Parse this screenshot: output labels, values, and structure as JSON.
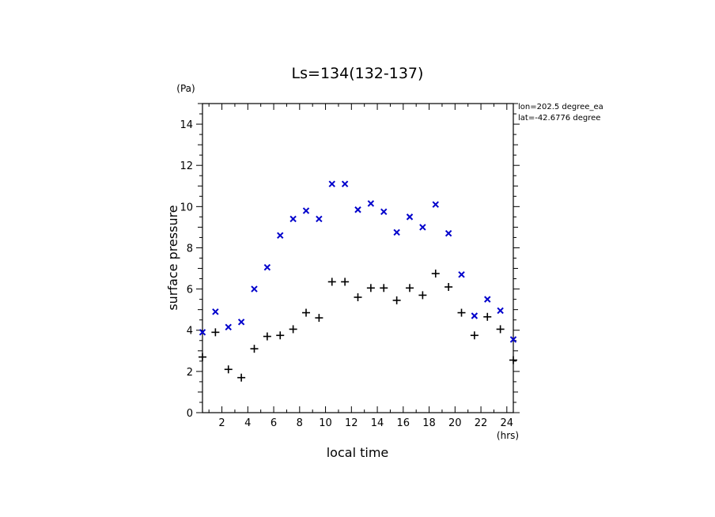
{
  "chart_data": {
    "type": "scatter",
    "title": "Ls=134(132-137)",
    "xlabel": "local time",
    "ylabel": "surface pressure",
    "x_unit": "(hrs)",
    "y_unit": "(Pa)",
    "xlim": [
      0.5,
      24.5
    ],
    "ylim": [
      0,
      15
    ],
    "xticks": [
      2,
      4,
      6,
      8,
      10,
      12,
      14,
      16,
      18,
      20,
      22,
      24
    ],
    "yticks": [
      0,
      2,
      4,
      6,
      8,
      10,
      12,
      14
    ],
    "annotations": [
      "lon=202.5 degree_ea",
      "lat=-42.6776 degree"
    ],
    "series": [
      {
        "marker": "x",
        "color": "#0000cc",
        "x": [
          0.5,
          1.5,
          2.5,
          3.5,
          4.5,
          5.5,
          6.5,
          7.5,
          8.5,
          9.5,
          10.5,
          11.5,
          12.5,
          13.5,
          14.5,
          15.5,
          16.5,
          17.5,
          18.5,
          19.5,
          20.5,
          21.5,
          22.5,
          23.5,
          24.5
        ],
        "y": [
          3.9,
          4.9,
          4.15,
          4.4,
          6.0,
          7.05,
          8.6,
          9.4,
          9.8,
          9.4,
          11.1,
          11.1,
          9.85,
          10.15,
          9.75,
          8.75,
          9.5,
          9.0,
          10.1,
          8.7,
          6.7,
          4.7,
          5.5,
          4.95,
          3.55
        ]
      },
      {
        "marker": "+",
        "color": "#000000",
        "x": [
          0.5,
          1.5,
          2.5,
          3.5,
          4.5,
          5.5,
          6.5,
          7.5,
          8.5,
          9.5,
          10.5,
          11.5,
          12.5,
          13.5,
          14.5,
          15.5,
          16.5,
          17.5,
          18.5,
          19.5,
          20.5,
          21.5,
          22.5,
          23.5,
          24.5
        ],
        "y": [
          2.7,
          3.9,
          2.1,
          1.7,
          3.1,
          3.7,
          3.75,
          4.05,
          4.85,
          4.6,
          6.35,
          6.35,
          5.6,
          6.05,
          6.05,
          5.45,
          6.05,
          5.7,
          6.75,
          6.1,
          4.85,
          3.75,
          4.65,
          4.05,
          2.55
        ]
      }
    ]
  }
}
